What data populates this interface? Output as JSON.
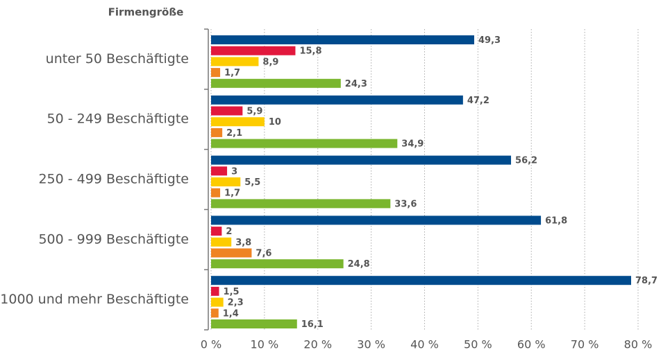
{
  "chart_data": {
    "type": "hbar",
    "y_axis_title": "Firmengröße",
    "categories": [
      "unter 50 Beschäftigte",
      "50 - 249 Beschäftigte",
      "250 - 499 Beschäftigte",
      "500 - 999 Beschäftigte",
      "1000 und mehr Beschäftigte"
    ],
    "series": [
      {
        "color": "#004b8d",
        "values": [
          49.3,
          47.2,
          56.2,
          61.8,
          78.7
        ],
        "value_labels": [
          "49,3",
          "47,2",
          "56,2",
          "61,8",
          "78,7"
        ]
      },
      {
        "color": "#e2183d",
        "values": [
          15.8,
          5.9,
          3,
          2,
          1.5
        ],
        "value_labels": [
          "15,8",
          "5,9",
          "3",
          "2",
          "1,5"
        ]
      },
      {
        "color": "#fdcc00",
        "values": [
          8.9,
          10,
          5.5,
          3.8,
          2.3
        ],
        "value_labels": [
          "8,9",
          "10",
          "5,5",
          "3,8",
          "2,3"
        ]
      },
      {
        "color": "#ef8423",
        "values": [
          1.7,
          2.1,
          1.7,
          7.6,
          1.4
        ],
        "value_labels": [
          "1,7",
          "2,1",
          "1,7",
          "7,6",
          "1,4"
        ]
      },
      {
        "color": "#7ab62e",
        "values": [
          24.3,
          34.9,
          33.6,
          24.8,
          16.1
        ],
        "value_labels": [
          "24,3",
          "34,9",
          "33,6",
          "24,8",
          "16,1"
        ]
      }
    ],
    "xlim": [
      0,
      80
    ],
    "xticks": [
      {
        "value": 0,
        "label": "0 %"
      },
      {
        "value": 10,
        "label": "10 %"
      },
      {
        "value": 20,
        "label": "20 %"
      },
      {
        "value": 30,
        "label": "30 %"
      },
      {
        "value": 40,
        "label": "40 %"
      },
      {
        "value": 50,
        "label": "50 %"
      },
      {
        "value": 60,
        "label": "60 %"
      },
      {
        "value": 70,
        "label": "70 %"
      },
      {
        "value": 80,
        "label": "80 %"
      }
    ],
    "grid": true
  }
}
